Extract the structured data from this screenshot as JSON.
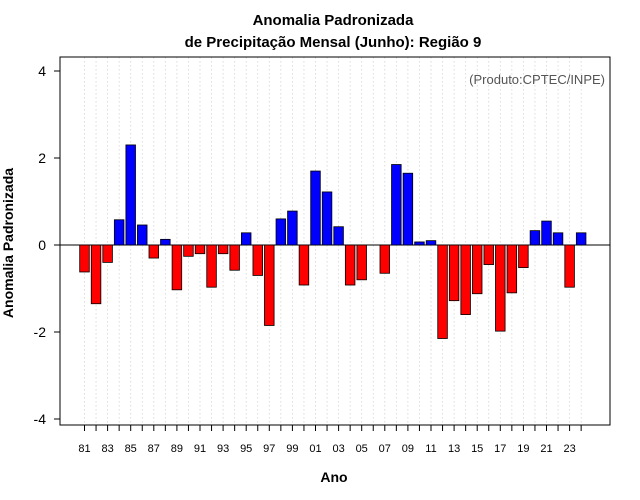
{
  "chart_data": {
    "type": "bar",
    "title_line1": "Anomalia Padronizada",
    "title_line2": "de Precipitação Mensal (Junho): Região 9",
    "xlabel": "Ano",
    "ylabel": "Anomalia Padronizada",
    "annotation": "(Produto:CPTEC/INPE)",
    "ylim": [
      -4.2,
      4.3
    ],
    "yticks": [
      -4,
      -2,
      0,
      2,
      4
    ],
    "yticklabels": [
      "-4",
      "-2",
      "0",
      "2",
      "4"
    ],
    "grid": true,
    "colors": {
      "positive": "#0000ff",
      "negative": "#ff0000"
    },
    "years": [
      1981,
      1982,
      1983,
      1984,
      1985,
      1986,
      1987,
      1988,
      1989,
      1990,
      1991,
      1992,
      1993,
      1994,
      1995,
      1996,
      1997,
      1998,
      1999,
      2000,
      2001,
      2002,
      2003,
      2004,
      2005,
      2006,
      2007,
      2008,
      2009,
      2010,
      2011,
      2012,
      2013,
      2014,
      2015,
      2016,
      2017,
      2018,
      2019,
      2020,
      2021,
      2022,
      2023,
      2024
    ],
    "values": [
      -0.62,
      -1.35,
      -0.4,
      0.58,
      2.3,
      0.46,
      -0.3,
      0.13,
      -1.03,
      -0.26,
      -0.2,
      -0.97,
      -0.2,
      -0.58,
      0.28,
      -0.7,
      -1.85,
      0.6,
      0.78,
      -0.92,
      1.7,
      1.22,
      0.42,
      -0.92,
      -0.8,
      0.0,
      -0.65,
      1.85,
      1.65,
      0.07,
      0.1,
      -2.15,
      -1.28,
      -1.6,
      -1.12,
      -0.45,
      -1.98,
      -1.1,
      -0.52,
      0.33,
      0.55,
      0.28,
      -0.97,
      0.28
    ],
    "xticklabels": [
      "81",
      "83",
      "85",
      "87",
      "89",
      "91",
      "93",
      "95",
      "97",
      "99",
      "01",
      "03",
      "05",
      "07",
      "09",
      "11",
      "13",
      "15",
      "17",
      "19",
      "21",
      "23"
    ]
  }
}
